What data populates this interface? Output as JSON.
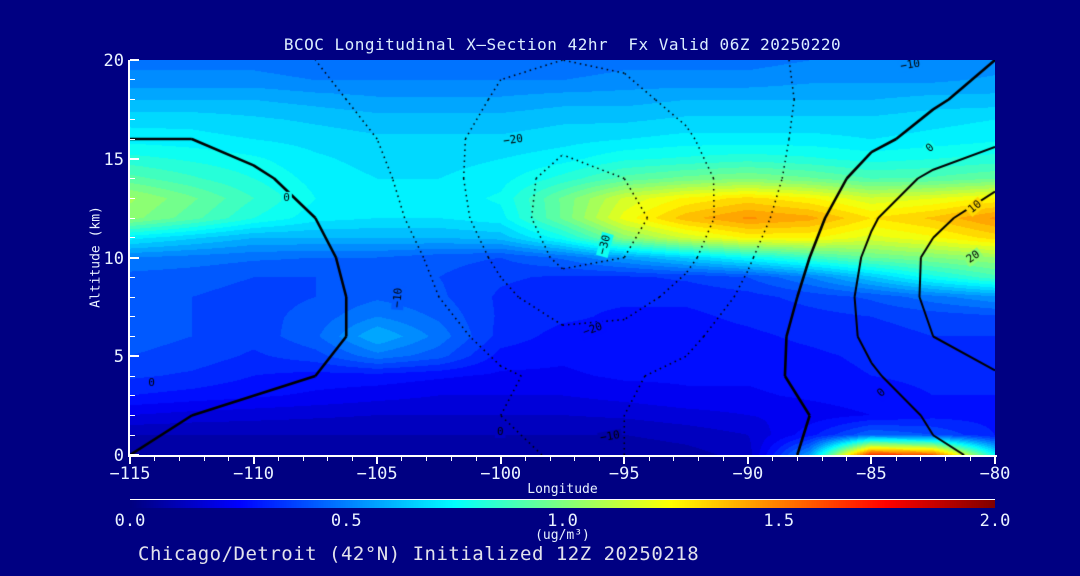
{
  "colors": {
    "background": "#000082",
    "text": "#e9f2ff",
    "title_text": "#dceeff",
    "caption_text": "#e2e2ec",
    "axis": "#ffffff",
    "contour_lines": "#000000",
    "field_low": "#000090",
    "field_high": "#ff8000"
  },
  "chart_data": {
    "type": "heatmap",
    "title": "BCOC Longitudinal X—Section 42hr  Fx Valid 06Z 20250220",
    "caption": "Chicago/Detroit (42°N) Initialized 12Z 20250218",
    "xlabel": "Longitude",
    "ylabel": "Altitude (km)",
    "xlim": [
      -115,
      -80
    ],
    "ylim": [
      0,
      20
    ],
    "x_ticks": {
      "major": [
        -115,
        -110,
        -105,
        -100,
        -95,
        -90,
        -85,
        -80
      ],
      "labels": [
        "−115",
        "−110",
        "−105",
        "−100",
        "−95",
        "−90",
        "−85",
        "−80"
      ],
      "minor_step": 1
    },
    "y_ticks": {
      "major": [
        0,
        5,
        10,
        15,
        20
      ],
      "labels": [
        "0",
        "5",
        "10",
        "15",
        "20"
      ],
      "minor_step": 1
    },
    "colormap": "jet",
    "fill_level_step": 0.05,
    "colorbar": {
      "min": 0.0,
      "max": 2.0,
      "tick_labels": [
        "0.0",
        "0.5",
        "1.0",
        "1.5",
        "2.0"
      ],
      "units": "(ug/m³)"
    },
    "grid": {
      "lons": [
        -115,
        -112.5,
        -110,
        -107.5,
        -105,
        -102.5,
        -100,
        -97.5,
        -95,
        -92.5,
        -90,
        -87.5,
        -85,
        -82.5,
        -80
      ],
      "alts": [
        0,
        1,
        2,
        3,
        4,
        5,
        6,
        7,
        8,
        9,
        10,
        11,
        12,
        13,
        14,
        15,
        16,
        17,
        18,
        19,
        20
      ],
      "values": [
        [
          0.05,
          0.05,
          0.05,
          0.05,
          0.05,
          0.05,
          0.05,
          0.05,
          0.06,
          0.08,
          0.12,
          0.55,
          1.65,
          1.55,
          0.75
        ],
        [
          0.1,
          0.1,
          0.1,
          0.1,
          0.1,
          0.1,
          0.1,
          0.1,
          0.1,
          0.12,
          0.15,
          0.28,
          0.45,
          0.4,
          0.3
        ],
        [
          0.2,
          0.18,
          0.17,
          0.16,
          0.15,
          0.15,
          0.15,
          0.15,
          0.16,
          0.18,
          0.2,
          0.22,
          0.25,
          0.28,
          0.28
        ],
        [
          0.3,
          0.28,
          0.26,
          0.24,
          0.22,
          0.2,
          0.2,
          0.2,
          0.22,
          0.24,
          0.24,
          0.26,
          0.28,
          0.3,
          0.3
        ],
        [
          0.36,
          0.34,
          0.3,
          0.28,
          0.28,
          0.26,
          0.24,
          0.24,
          0.26,
          0.26,
          0.26,
          0.28,
          0.3,
          0.31,
          0.32
        ],
        [
          0.4,
          0.38,
          0.34,
          0.38,
          0.48,
          0.42,
          0.28,
          0.26,
          0.28,
          0.28,
          0.28,
          0.29,
          0.31,
          0.33,
          0.33
        ],
        [
          0.42,
          0.4,
          0.37,
          0.44,
          0.6,
          0.48,
          0.33,
          0.28,
          0.28,
          0.28,
          0.29,
          0.31,
          0.33,
          0.35,
          0.35
        ],
        [
          0.42,
          0.4,
          0.38,
          0.42,
          0.5,
          0.44,
          0.34,
          0.31,
          0.29,
          0.29,
          0.31,
          0.33,
          0.35,
          0.37,
          0.39
        ],
        [
          0.41,
          0.4,
          0.38,
          0.4,
          0.44,
          0.41,
          0.34,
          0.31,
          0.31,
          0.31,
          0.33,
          0.37,
          0.41,
          0.48,
          0.54
        ],
        [
          0.43,
          0.42,
          0.4,
          0.4,
          0.42,
          0.4,
          0.36,
          0.34,
          0.34,
          0.36,
          0.4,
          0.5,
          0.64,
          0.78,
          0.88
        ],
        [
          0.5,
          0.48,
          0.46,
          0.45,
          0.45,
          0.42,
          0.4,
          0.46,
          0.56,
          0.66,
          0.76,
          0.86,
          0.95,
          1.0,
          1.05
        ],
        [
          0.72,
          0.66,
          0.6,
          0.6,
          0.6,
          0.6,
          0.62,
          0.78,
          1.02,
          1.16,
          1.26,
          1.26,
          1.18,
          1.24,
          1.32
        ],
        [
          1.02,
          0.92,
          0.8,
          0.72,
          0.7,
          0.7,
          0.73,
          0.96,
          1.22,
          1.38,
          1.46,
          1.42,
          1.3,
          1.36,
          1.46
        ],
        [
          1.06,
          0.96,
          0.85,
          0.75,
          0.72,
          0.72,
          0.76,
          0.96,
          1.16,
          1.26,
          1.32,
          1.26,
          1.16,
          1.2,
          1.26
        ],
        [
          0.92,
          0.86,
          0.8,
          0.73,
          0.7,
          0.7,
          0.73,
          0.82,
          0.92,
          0.97,
          1.0,
          0.96,
          0.9,
          0.91,
          0.95
        ],
        [
          0.82,
          0.79,
          0.76,
          0.71,
          0.68,
          0.68,
          0.7,
          0.73,
          0.79,
          0.81,
          0.83,
          0.81,
          0.78,
          0.8,
          0.82
        ],
        [
          0.73,
          0.72,
          0.7,
          0.68,
          0.66,
          0.66,
          0.66,
          0.68,
          0.7,
          0.72,
          0.72,
          0.72,
          0.7,
          0.72,
          0.74
        ],
        [
          0.68,
          0.68,
          0.66,
          0.64,
          0.62,
          0.62,
          0.62,
          0.64,
          0.64,
          0.66,
          0.66,
          0.66,
          0.66,
          0.68,
          0.7
        ],
        [
          0.6,
          0.6,
          0.6,
          0.58,
          0.56,
          0.56,
          0.56,
          0.58,
          0.58,
          0.6,
          0.6,
          0.6,
          0.6,
          0.62,
          0.62
        ],
        [
          0.52,
          0.52,
          0.52,
          0.5,
          0.5,
          0.5,
          0.5,
          0.5,
          0.52,
          0.52,
          0.52,
          0.54,
          0.54,
          0.54,
          0.56
        ],
        [
          0.48,
          0.48,
          0.48,
          0.46,
          0.46,
          0.46,
          0.46,
          0.46,
          0.48,
          0.48,
          0.48,
          0.5,
          0.5,
          0.5,
          0.52
        ]
      ]
    },
    "contour_overlay": {
      "levels": [
        -30,
        -20,
        -10,
        0,
        10,
        20,
        30
      ],
      "negative_style": "dotted",
      "positive_style": "solid",
      "lons": [
        -115,
        -112.5,
        -110,
        -107.5,
        -105,
        -102.5,
        -100,
        -97.5,
        -95,
        -92.5,
        -90,
        -87.5,
        -85,
        -82.5,
        -80
      ],
      "alts": [
        0,
        2,
        4,
        6,
        8,
        10,
        12,
        14,
        16,
        18,
        20
      ],
      "values": [
        [
          0,
          -1,
          -2,
          -2,
          -3,
          -5,
          -8,
          -11,
          -10,
          -8,
          -4,
          1,
          6,
          9,
          11
        ],
        [
          1,
          0,
          -1,
          -2,
          -4,
          -7,
          -10,
          -12,
          -10,
          -7,
          -2,
          0,
          6,
          11,
          14
        ],
        [
          0,
          1,
          1,
          0,
          -2,
          -5,
          -9,
          -12,
          -11,
          -8,
          -3,
          2,
          9,
          15,
          19
        ],
        [
          1,
          2,
          3,
          2,
          -2,
          -7,
          -13,
          -18,
          -17,
          -12,
          -5,
          3,
          12,
          20,
          26
        ],
        [
          1,
          2,
          4,
          3,
          -3,
          -10,
          -18,
          -25,
          -24,
          -17,
          -8,
          2,
          13,
          22,
          30
        ],
        [
          0,
          1,
          3,
          2,
          -4,
          -12,
          -22,
          -32,
          -30,
          -22,
          -11,
          0,
          12,
          22,
          28
        ],
        [
          1,
          2,
          2,
          0,
          -6,
          -15,
          -25,
          -35,
          -33,
          -25,
          -14,
          -3,
          9,
          18,
          24
        ],
        [
          2,
          2,
          1,
          -2,
          -8,
          -16,
          -26,
          -33,
          -30,
          -24,
          -15,
          -6,
          4,
          12,
          18
        ],
        [
          0,
          0,
          -2,
          -5,
          -10,
          -17,
          -24,
          -28,
          -26,
          -21,
          -14,
          -8,
          -2,
          3,
          8
        ],
        [
          -2,
          -3,
          -5,
          -8,
          -12,
          -16,
          -21,
          -23,
          -22,
          -18,
          -13,
          -9,
          -5,
          -1,
          3
        ],
        [
          -4,
          -5,
          -7,
          -10,
          -13,
          -16,
          -19,
          -20,
          -19,
          -16,
          -12,
          -9,
          -6,
          -3,
          0
        ]
      ]
    },
    "contour_labels": [
      {
        "text": "0",
        "fx": 0.181,
        "fy": 0.349,
        "rot": 0
      },
      {
        "text": "−20",
        "fx": 0.443,
        "fy": 0.203,
        "rot": -8
      },
      {
        "text": "−10",
        "fx": 0.902,
        "fy": 0.013,
        "rot": -10
      },
      {
        "text": "−30",
        "fx": 0.549,
        "fy": 0.468,
        "rot": -75
      },
      {
        "text": "−10",
        "fx": 0.31,
        "fy": 0.602,
        "rot": -85
      },
      {
        "text": "−20",
        "fx": 0.535,
        "fy": 0.683,
        "rot": -20
      },
      {
        "text": "0",
        "fx": 0.025,
        "fy": 0.818,
        "rot": 0
      },
      {
        "text": "0",
        "fx": 0.428,
        "fy": 0.942,
        "rot": 0
      },
      {
        "text": "−10",
        "fx": 0.555,
        "fy": 0.954,
        "rot": -10
      },
      {
        "text": "0",
        "fx": 0.869,
        "fy": 0.843,
        "rot": -45
      },
      {
        "text": "0",
        "fx": 0.925,
        "fy": 0.223,
        "rot": -40
      },
      {
        "text": "10",
        "fx": 0.977,
        "fy": 0.372,
        "rot": -40
      },
      {
        "text": "20",
        "fx": 0.975,
        "fy": 0.499,
        "rot": -35
      }
    ]
  }
}
